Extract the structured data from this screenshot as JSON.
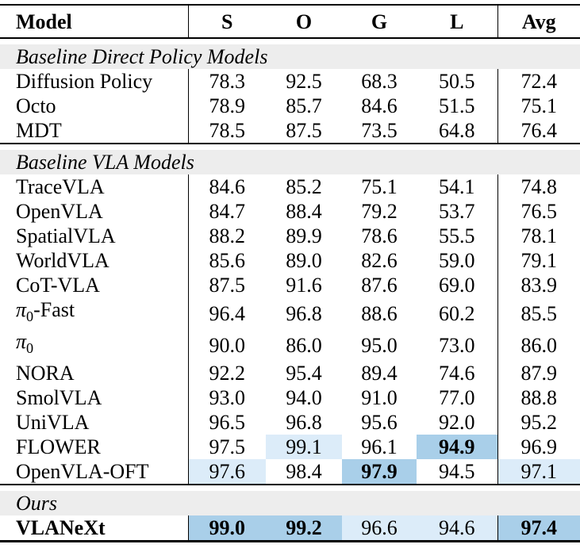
{
  "table_title": "model-benchmark-results",
  "columns": [
    "Model",
    "S",
    "O",
    "G",
    "L",
    "Avg"
  ],
  "colors": {
    "highlight_strong": "#a9cfe9",
    "highlight_light": "#dcecf9",
    "section_band_bg": "#ededed",
    "rule_color": "#000000",
    "text_color": "#000000"
  },
  "highlight_legend": {
    "hl_values": "0 = none, 1 = light blue, 2 = strong blue",
    "b": "bold"
  },
  "sections": [
    {
      "label": "Baseline Direct Policy Models",
      "rows": [
        {
          "model": "Diffusion Policy",
          "bold": false,
          "cells": [
            {
              "v": "78.3",
              "hl": 0,
              "b": false
            },
            {
              "v": "92.5",
              "hl": 0,
              "b": false
            },
            {
              "v": "68.3",
              "hl": 0,
              "b": false
            },
            {
              "v": "50.5",
              "hl": 0,
              "b": false
            },
            {
              "v": "72.4",
              "hl": 0,
              "b": false
            }
          ]
        },
        {
          "model": "Octo",
          "bold": false,
          "cells": [
            {
              "v": "78.9",
              "hl": 0,
              "b": false
            },
            {
              "v": "85.7",
              "hl": 0,
              "b": false
            },
            {
              "v": "84.6",
              "hl": 0,
              "b": false
            },
            {
              "v": "51.5",
              "hl": 0,
              "b": false
            },
            {
              "v": "75.1",
              "hl": 0,
              "b": false
            }
          ]
        },
        {
          "model": "MDT",
          "bold": false,
          "cells": [
            {
              "v": "78.5",
              "hl": 0,
              "b": false
            },
            {
              "v": "87.5",
              "hl": 0,
              "b": false
            },
            {
              "v": "73.5",
              "hl": 0,
              "b": false
            },
            {
              "v": "64.8",
              "hl": 0,
              "b": false
            },
            {
              "v": "76.4",
              "hl": 0,
              "b": false
            }
          ]
        }
      ]
    },
    {
      "label": "Baseline VLA Models",
      "rows": [
        {
          "model": "TraceVLA",
          "bold": false,
          "cells": [
            {
              "v": "84.6",
              "hl": 0,
              "b": false
            },
            {
              "v": "85.2",
              "hl": 0,
              "b": false
            },
            {
              "v": "75.1",
              "hl": 0,
              "b": false
            },
            {
              "v": "54.1",
              "hl": 0,
              "b": false
            },
            {
              "v": "74.8",
              "hl": 0,
              "b": false
            }
          ]
        },
        {
          "model": "OpenVLA",
          "bold": false,
          "cells": [
            {
              "v": "84.7",
              "hl": 0,
              "b": false
            },
            {
              "v": "88.4",
              "hl": 0,
              "b": false
            },
            {
              "v": "79.2",
              "hl": 0,
              "b": false
            },
            {
              "v": "53.7",
              "hl": 0,
              "b": false
            },
            {
              "v": "76.5",
              "hl": 0,
              "b": false
            }
          ]
        },
        {
          "model": "SpatialVLA",
          "bold": false,
          "cells": [
            {
              "v": "88.2",
              "hl": 0,
              "b": false
            },
            {
              "v": "89.9",
              "hl": 0,
              "b": false
            },
            {
              "v": "78.6",
              "hl": 0,
              "b": false
            },
            {
              "v": "55.5",
              "hl": 0,
              "b": false
            },
            {
              "v": "78.1",
              "hl": 0,
              "b": false
            }
          ]
        },
        {
          "model": "WorldVLA",
          "bold": false,
          "cells": [
            {
              "v": "85.6",
              "hl": 0,
              "b": false
            },
            {
              "v": "89.0",
              "hl": 0,
              "b": false
            },
            {
              "v": "82.6",
              "hl": 0,
              "b": false
            },
            {
              "v": "59.0",
              "hl": 0,
              "b": false
            },
            {
              "v": "79.1",
              "hl": 0,
              "b": false
            }
          ]
        },
        {
          "model": "CoT-VLA",
          "bold": false,
          "cells": [
            {
              "v": "87.5",
              "hl": 0,
              "b": false
            },
            {
              "v": "91.6",
              "hl": 0,
              "b": false
            },
            {
              "v": "87.6",
              "hl": 0,
              "b": false
            },
            {
              "v": "69.0",
              "hl": 0,
              "b": false
            },
            {
              "v": "83.9",
              "hl": 0,
              "b": false
            }
          ]
        },
        {
          "model": "π₀-Fast",
          "bold": false,
          "cells": [
            {
              "v": "96.4",
              "hl": 0,
              "b": false
            },
            {
              "v": "96.8",
              "hl": 0,
              "b": false
            },
            {
              "v": "88.6",
              "hl": 0,
              "b": false
            },
            {
              "v": "60.2",
              "hl": 0,
              "b": false
            },
            {
              "v": "85.5",
              "hl": 0,
              "b": false
            }
          ]
        },
        {
          "model": "π₀",
          "bold": false,
          "cells": [
            {
              "v": "90.0",
              "hl": 0,
              "b": false
            },
            {
              "v": "86.0",
              "hl": 0,
              "b": false
            },
            {
              "v": "95.0",
              "hl": 0,
              "b": false
            },
            {
              "v": "73.0",
              "hl": 0,
              "b": false
            },
            {
              "v": "86.0",
              "hl": 0,
              "b": false
            }
          ]
        },
        {
          "model": "NORA",
          "bold": false,
          "cells": [
            {
              "v": "92.2",
              "hl": 0,
              "b": false
            },
            {
              "v": "95.4",
              "hl": 0,
              "b": false
            },
            {
              "v": "89.4",
              "hl": 0,
              "b": false
            },
            {
              "v": "74.6",
              "hl": 0,
              "b": false
            },
            {
              "v": "87.9",
              "hl": 0,
              "b": false
            }
          ]
        },
        {
          "model": "SmolVLA",
          "bold": false,
          "cells": [
            {
              "v": "93.0",
              "hl": 0,
              "b": false
            },
            {
              "v": "94.0",
              "hl": 0,
              "b": false
            },
            {
              "v": "91.0",
              "hl": 0,
              "b": false
            },
            {
              "v": "77.0",
              "hl": 0,
              "b": false
            },
            {
              "v": "88.8",
              "hl": 0,
              "b": false
            }
          ]
        },
        {
          "model": "UniVLA",
          "bold": false,
          "cells": [
            {
              "v": "96.5",
              "hl": 0,
              "b": false
            },
            {
              "v": "96.8",
              "hl": 0,
              "b": false
            },
            {
              "v": "95.6",
              "hl": 0,
              "b": false
            },
            {
              "v": "92.0",
              "hl": 0,
              "b": false
            },
            {
              "v": "95.2",
              "hl": 0,
              "b": false
            }
          ]
        },
        {
          "model": "FLOWER",
          "bold": false,
          "cells": [
            {
              "v": "97.5",
              "hl": 0,
              "b": false
            },
            {
              "v": "99.1",
              "hl": 1,
              "b": false
            },
            {
              "v": "96.1",
              "hl": 0,
              "b": false
            },
            {
              "v": "94.9",
              "hl": 2,
              "b": true
            },
            {
              "v": "96.9",
              "hl": 0,
              "b": false
            }
          ]
        },
        {
          "model": "OpenVLA-OFT",
          "bold": false,
          "cells": [
            {
              "v": "97.6",
              "hl": 1,
              "b": false
            },
            {
              "v": "98.4",
              "hl": 0,
              "b": false
            },
            {
              "v": "97.9",
              "hl": 2,
              "b": true
            },
            {
              "v": "94.5",
              "hl": 0,
              "b": false
            },
            {
              "v": "97.1",
              "hl": 1,
              "b": false
            }
          ]
        }
      ]
    },
    {
      "label": "Ours",
      "rows": [
        {
          "model": "VLANeXt",
          "bold": true,
          "cells": [
            {
              "v": "99.0",
              "hl": 2,
              "b": true
            },
            {
              "v": "99.2",
              "hl": 2,
              "b": true
            },
            {
              "v": "96.6",
              "hl": 1,
              "b": false
            },
            {
              "v": "94.6",
              "hl": 1,
              "b": false
            },
            {
              "v": "97.4",
              "hl": 2,
              "b": true
            }
          ]
        }
      ]
    }
  ]
}
